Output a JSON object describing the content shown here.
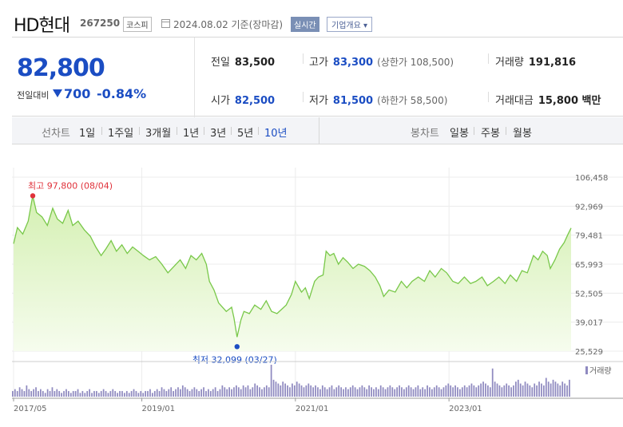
{
  "header": {
    "company": "HD현대",
    "code": "267250",
    "market": "코스피",
    "date_text": "2024.08.02  기준(장마감)",
    "live_label": "실시간",
    "info_label": "기업개요 ▾"
  },
  "quote": {
    "price": "82,800",
    "change_label": "전일대비",
    "change_amount": "700",
    "change_pct": "-0.84%",
    "prev_close": {
      "label": "전일",
      "value": "83,500"
    },
    "high": {
      "label": "고가",
      "value": "83,300",
      "sub": "(상한가 108,500)"
    },
    "volume": {
      "label": "거래량",
      "value": "191,816"
    },
    "open": {
      "label": "시가",
      "value": "82,500"
    },
    "low": {
      "label": "저가",
      "value": "81,500",
      "sub": "(하한가 58,500)"
    },
    "amount": {
      "label": "거래대금",
      "value": "15,800 백만"
    }
  },
  "tabs": {
    "line_title": "선차트",
    "line_items": [
      "1일",
      "1주일",
      "3개월",
      "1년",
      "3년",
      "5년",
      "10년"
    ],
    "active": "10년",
    "candle_title": "봉차트",
    "candle_items": [
      "일봉",
      "주봉",
      "월봉"
    ]
  },
  "colors": {
    "accent": "#1b4dc3",
    "line": "#79c84a",
    "fill_top": "#d4f0b2",
    "fill_bottom": "#f6fcee",
    "high_marker": "#e0323b",
    "volume": "#8f8ac0"
  },
  "chart_data": {
    "type": "area",
    "y_ticks": [
      "106,458",
      "92,969",
      "79,481",
      "65,993",
      "52,505",
      "39,017",
      "25,529"
    ],
    "ylim": [
      25529,
      106458
    ],
    "x_ticks": [
      {
        "t": 2017.33,
        "label": "2017/05"
      },
      {
        "t": 2019.0,
        "label": "2019/01"
      },
      {
        "t": 2021.0,
        "label": "2021/01"
      },
      {
        "t": 2023.0,
        "label": "2023/01"
      }
    ],
    "xlim": [
      2017.33,
      2024.59
    ],
    "series": [
      {
        "points": [
          [
            2017.33,
            75500
          ],
          [
            2017.38,
            83000
          ],
          [
            2017.45,
            80000
          ],
          [
            2017.52,
            86000
          ],
          [
            2017.58,
            97800
          ],
          [
            2017.63,
            90000
          ],
          [
            2017.7,
            88000
          ],
          [
            2017.77,
            84000
          ],
          [
            2017.84,
            92000
          ],
          [
            2017.9,
            87000
          ],
          [
            2017.97,
            85000
          ],
          [
            2018.04,
            91000
          ],
          [
            2018.1,
            84000
          ],
          [
            2018.17,
            86000
          ],
          [
            2018.25,
            82000
          ],
          [
            2018.33,
            79000
          ],
          [
            2018.4,
            74000
          ],
          [
            2018.47,
            70000
          ],
          [
            2018.53,
            73000
          ],
          [
            2018.6,
            77000
          ],
          [
            2018.67,
            72000
          ],
          [
            2018.74,
            75000
          ],
          [
            2018.81,
            71000
          ],
          [
            2018.88,
            74000
          ],
          [
            2018.95,
            72000
          ],
          [
            2019.02,
            70000
          ],
          [
            2019.1,
            68000
          ],
          [
            2019.18,
            69500
          ],
          [
            2019.26,
            66000
          ],
          [
            2019.34,
            62000
          ],
          [
            2019.42,
            65000
          ],
          [
            2019.5,
            68000
          ],
          [
            2019.57,
            64000
          ],
          [
            2019.64,
            70000
          ],
          [
            2019.71,
            68000
          ],
          [
            2019.78,
            71000
          ],
          [
            2019.84,
            66000
          ],
          [
            2019.88,
            58000
          ],
          [
            2019.94,
            54000
          ],
          [
            2020.0,
            48000
          ],
          [
            2020.1,
            44000
          ],
          [
            2020.17,
            46000
          ],
          [
            2020.2,
            41000
          ],
          [
            2020.24,
            32099
          ],
          [
            2020.29,
            40000
          ],
          [
            2020.33,
            44000
          ],
          [
            2020.4,
            43000
          ],
          [
            2020.47,
            47000
          ],
          [
            2020.55,
            45000
          ],
          [
            2020.62,
            49000
          ],
          [
            2020.69,
            44000
          ],
          [
            2020.76,
            43000
          ],
          [
            2020.82,
            45000
          ],
          [
            2020.88,
            47000
          ],
          [
            2020.95,
            52000
          ],
          [
            2021.0,
            58000
          ],
          [
            2021.08,
            53000
          ],
          [
            2021.13,
            55000
          ],
          [
            2021.18,
            50000
          ],
          [
            2021.25,
            58000
          ],
          [
            2021.3,
            60000
          ],
          [
            2021.36,
            61000
          ],
          [
            2021.4,
            72000
          ],
          [
            2021.45,
            70000
          ],
          [
            2021.5,
            71000
          ],
          [
            2021.56,
            66000
          ],
          [
            2021.62,
            69000
          ],
          [
            2021.68,
            67000
          ],
          [
            2021.75,
            64000
          ],
          [
            2021.82,
            66000
          ],
          [
            2021.9,
            65000
          ],
          [
            2021.97,
            63000
          ],
          [
            2022.04,
            60000
          ],
          [
            2022.1,
            56000
          ],
          [
            2022.15,
            51000
          ],
          [
            2022.22,
            54000
          ],
          [
            2022.3,
            53000
          ],
          [
            2022.38,
            58000
          ],
          [
            2022.45,
            55000
          ],
          [
            2022.52,
            58000
          ],
          [
            2022.6,
            60000
          ],
          [
            2022.68,
            58000
          ],
          [
            2022.75,
            63000
          ],
          [
            2022.82,
            60000
          ],
          [
            2022.9,
            64000
          ],
          [
            2022.97,
            62000
          ],
          [
            2023.05,
            58000
          ],
          [
            2023.12,
            57000
          ],
          [
            2023.2,
            60000
          ],
          [
            2023.28,
            57000
          ],
          [
            2023.35,
            58000
          ],
          [
            2023.43,
            60000
          ],
          [
            2023.5,
            56000
          ],
          [
            2023.58,
            58000
          ],
          [
            2023.65,
            60000
          ],
          [
            2023.73,
            57000
          ],
          [
            2023.8,
            61000
          ],
          [
            2023.88,
            58000
          ],
          [
            2023.95,
            63000
          ],
          [
            2024.02,
            62000
          ],
          [
            2024.1,
            70000
          ],
          [
            2024.16,
            68000
          ],
          [
            2024.22,
            72000
          ],
          [
            2024.28,
            70000
          ],
          [
            2024.32,
            64000
          ],
          [
            2024.38,
            68000
          ],
          [
            2024.44,
            73000
          ],
          [
            2024.5,
            76000
          ],
          [
            2024.55,
            80000
          ],
          [
            2024.59,
            82800
          ]
        ]
      }
    ],
    "high_annotation": {
      "label": "최고  97,800  (08/04)",
      "t": 2017.58,
      "v": 97800
    },
    "low_annotation": {
      "label": "최저  32,099  (03/27)",
      "t": 2020.24,
      "v": 32099
    },
    "volume": {
      "label": "거래량",
      "values": [
        3,
        4,
        3,
        5,
        4,
        3,
        6,
        4,
        3,
        4,
        5,
        3,
        4,
        3,
        2,
        4,
        3,
        5,
        3,
        4,
        3,
        2,
        3,
        4,
        3,
        2,
        3,
        3,
        4,
        2,
        3,
        2,
        3,
        4,
        2,
        3,
        3,
        2,
        3,
        4,
        3,
        2,
        3,
        4,
        3,
        2,
        3,
        3,
        2,
        3,
        2,
        3,
        4,
        3,
        2,
        3,
        2,
        3,
        3,
        4,
        2,
        3,
        4,
        3,
        5,
        4,
        3,
        4,
        5,
        3,
        4,
        5,
        4,
        6,
        5,
        4,
        3,
        4,
        5,
        4,
        3,
        4,
        5,
        3,
        4,
        3,
        4,
        5,
        3,
        4,
        6,
        5,
        4,
        5,
        4,
        5,
        6,
        5,
        4,
        6,
        5,
        6,
        4,
        5,
        7,
        6,
        5,
        4,
        5,
        6,
        5,
        17,
        9,
        8,
        7,
        6,
        8,
        7,
        6,
        5,
        7,
        6,
        8,
        7,
        6,
        5,
        6,
        7,
        6,
        5,
        6,
        5,
        4,
        6,
        5,
        4,
        5,
        6,
        4,
        5,
        6,
        5,
        4,
        5,
        4,
        5,
        6,
        5,
        4,
        5,
        6,
        5,
        4,
        6,
        5,
        4,
        5,
        4,
        6,
        5,
        4,
        5,
        6,
        5,
        4,
        5,
        6,
        5,
        4,
        5,
        6,
        5,
        4,
        5,
        6,
        4,
        5,
        4,
        6,
        5,
        4,
        5,
        6,
        5,
        4,
        5,
        6,
        7,
        6,
        5,
        6,
        5,
        4,
        5,
        6,
        5,
        6,
        7,
        6,
        5,
        6,
        7,
        8,
        7,
        6,
        5,
        15,
        8,
        7,
        6,
        5,
        6,
        7,
        6,
        5,
        6,
        8,
        9,
        7,
        6,
        8,
        7,
        6,
        5,
        7,
        6,
        8,
        7,
        6,
        10,
        8,
        7,
        9,
        8,
        7,
        6,
        8,
        7,
        6,
        9
      ]
    }
  }
}
